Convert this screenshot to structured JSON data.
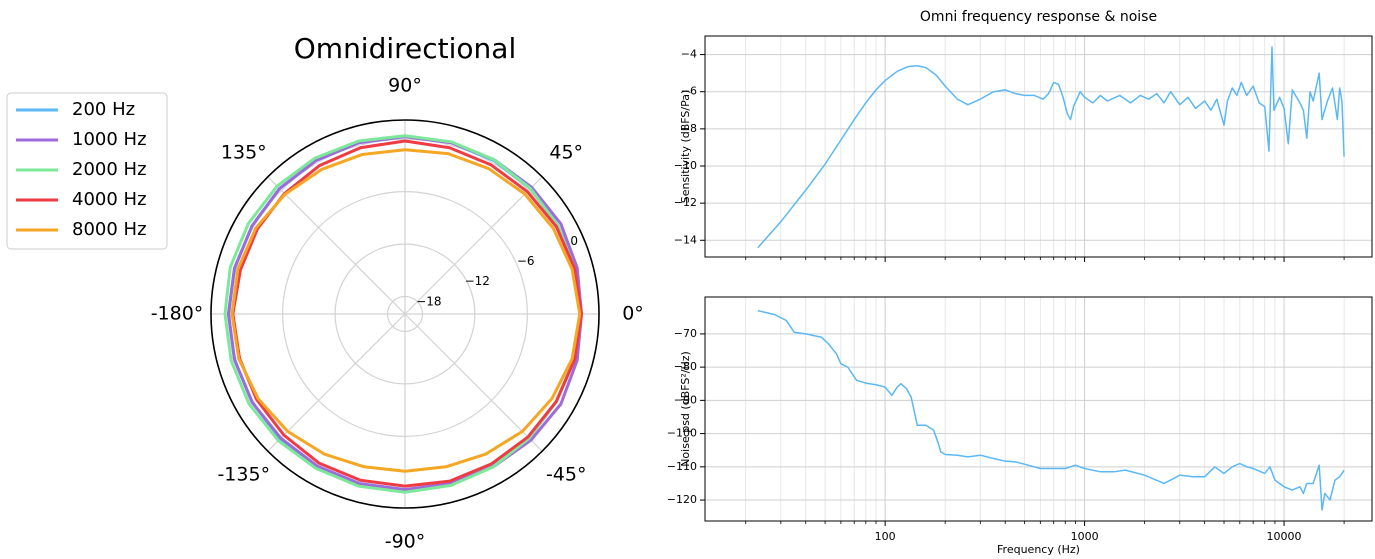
{
  "chart_data": [
    {
      "type": "polar",
      "title": "Omnidirectional",
      "theta": [
        0,
        15,
        30,
        45,
        60,
        75,
        90,
        105,
        120,
        135,
        150,
        165,
        180,
        195,
        210,
        225,
        240,
        255,
        270,
        285,
        300,
        315,
        330,
        345
      ],
      "series": [
        {
          "name": "200 Hz",
          "color": "#5bb8f5",
          "values": [
            0.1,
            0.2,
            0.2,
            0.3,
            0.3,
            0.3,
            0.3,
            0.3,
            0.3,
            0.3,
            0.2,
            0.2,
            0.2,
            0.2,
            0.2,
            0.2,
            0.1,
            0.1,
            0.1,
            0.1,
            0.1,
            0.1,
            0.0,
            0.0
          ]
        },
        {
          "name": "1000 Hz",
          "color": "#9e6bdc",
          "values": [
            0.2,
            0.4,
            0.6,
            0.5,
            0.4,
            0.3,
            0.3,
            0.3,
            0.3,
            0.3,
            0.2,
            0.2,
            0.2,
            0.2,
            0.2,
            0.1,
            0.1,
            0.1,
            0.1,
            0.1,
            0.2,
            0.4,
            0.6,
            0.4
          ]
        },
        {
          "name": "2000 Hz",
          "color": "#7ee89a",
          "values": [
            0.0,
            0.1,
            0.2,
            0.3,
            0.4,
            0.4,
            0.4,
            0.5,
            0.6,
            0.7,
            0.7,
            0.7,
            0.6,
            0.6,
            0.6,
            0.5,
            0.4,
            0.4,
            0.4,
            0.3,
            0.2,
            0.1,
            0.0,
            0.0
          ]
        },
        {
          "name": "4000 Hz",
          "color": "#ef3b44",
          "values": [
            0.2,
            0.1,
            0.0,
            -0.2,
            -0.3,
            -0.3,
            -0.2,
            -0.3,
            -0.4,
            -0.5,
            -0.5,
            -0.5,
            -0.3,
            -0.4,
            -0.4,
            -0.4,
            -0.3,
            -0.3,
            -0.3,
            -0.2,
            -0.2,
            -0.1,
            0.0,
            0.1
          ]
        },
        {
          "name": "8000 Hz",
          "color": "#f5a623",
          "values": [
            0.0,
            -0.2,
            -0.4,
            -0.6,
            -0.8,
            -1.0,
            -1.2,
            -1.1,
            -0.9,
            -0.6,
            -0.3,
            -0.2,
            -0.2,
            -0.3,
            -0.6,
            -1.0,
            -1.5,
            -1.9,
            -2.0,
            -1.9,
            -1.5,
            -1.0,
            -0.6,
            -0.2
          ]
        }
      ],
      "rlim": [
        -20,
        2.2
      ],
      "rticks": [
        {
          "value": -18,
          "label": "−18"
        },
        {
          "value": -12,
          "label": "−12"
        },
        {
          "value": -6,
          "label": "−6"
        },
        0
      ],
      "thetaticks": [
        {
          "value": 0,
          "label": "0°"
        },
        {
          "value": 45,
          "label": "45°"
        },
        {
          "value": 90,
          "label": "90°"
        },
        {
          "value": 135,
          "label": "135°"
        },
        {
          "value": -180,
          "label": "-180°"
        },
        {
          "value": -135,
          "label": "-135°"
        },
        {
          "value": -90,
          "label": "-90°"
        },
        {
          "value": -45,
          "label": "-45°"
        }
      ],
      "grid": true,
      "legend": "left"
    },
    {
      "type": "line",
      "title": "Omni frequency response & noise",
      "ylabel": "Sensitivity (dBFS/Pa)",
      "xscale": "log",
      "x": [
        23,
        30,
        40,
        50,
        60,
        70,
        80,
        90,
        100,
        115,
        130,
        145,
        160,
        180,
        200,
        230,
        260,
        300,
        350,
        400,
        450,
        500,
        560,
        620,
        660,
        700,
        740,
        780,
        820,
        850,
        880,
        950,
        1000,
        1100,
        1200,
        1300,
        1500,
        1700,
        1900,
        2100,
        2300,
        2500,
        2700,
        3000,
        3300,
        3600,
        4000,
        4300,
        4600,
        5000,
        5200,
        5500,
        5800,
        6100,
        6500,
        7000,
        7500,
        8000,
        8400,
        8700,
        8900,
        9500,
        10000,
        10500,
        11000,
        12000,
        12500,
        13000,
        13500,
        14000,
        15000,
        15500,
        16500,
        17500,
        18500,
        19000,
        19500,
        20000
      ],
      "series": [
        {
          "color": "#5bb8f5",
          "values": [
            -14.4,
            -13.0,
            -11.3,
            -9.9,
            -8.6,
            -7.5,
            -6.6,
            -5.9,
            -5.4,
            -4.9,
            -4.65,
            -4.6,
            -4.7,
            -5.1,
            -5.7,
            -6.4,
            -6.7,
            -6.4,
            -6.0,
            -5.9,
            -6.1,
            -6.2,
            -6.2,
            -6.4,
            -6.1,
            -5.5,
            -5.6,
            -6.3,
            -7.2,
            -7.5,
            -6.8,
            -6.0,
            -6.3,
            -6.6,
            -6.2,
            -6.5,
            -6.2,
            -6.6,
            -6.2,
            -6.4,
            -6.1,
            -6.6,
            -6.0,
            -6.7,
            -6.3,
            -6.9,
            -6.5,
            -7.0,
            -6.4,
            -7.8,
            -6.5,
            -5.8,
            -6.2,
            -5.5,
            -6.2,
            -5.7,
            -6.6,
            -6.8,
            -9.2,
            -3.6,
            -7.0,
            -6.3,
            -6.9,
            -8.8,
            -5.9,
            -6.6,
            -7.0,
            -8.5,
            -6.0,
            -6.5,
            -5.0,
            -7.5,
            -6.5,
            -5.8,
            -7.5,
            -5.8,
            -6.5,
            -9.5
          ]
        }
      ],
      "xlim": [
        12.5,
        27600
      ],
      "xticks": [
        100,
        1000,
        10000
      ],
      "xminor": [
        20,
        30,
        40,
        50,
        60,
        70,
        80,
        90,
        200,
        300,
        400,
        500,
        600,
        700,
        800,
        900,
        2000,
        3000,
        4000,
        5000,
        6000,
        7000,
        8000,
        9000,
        20000
      ],
      "ylim": [
        -14.9,
        -3.0
      ],
      "yticks": [
        {
          "value": -14,
          "label": "−14"
        },
        {
          "value": -12,
          "label": "−12"
        },
        {
          "value": -10,
          "label": "−10"
        },
        {
          "value": -8,
          "label": "−8"
        },
        {
          "value": -6,
          "label": "−6"
        },
        {
          "value": -4,
          "label": "−4"
        }
      ],
      "grid": true
    },
    {
      "type": "line",
      "ylabel": "Noise psd (dBFS²/Hz)",
      "xlabel": "Frequency (Hz)",
      "xscale": "log",
      "x": [
        23,
        28,
        32,
        35,
        40,
        48,
        52,
        57,
        60,
        65,
        72,
        80,
        90,
        100,
        108,
        115,
        120,
        128,
        135,
        145,
        160,
        175,
        185,
        190,
        200,
        230,
        260,
        300,
        350,
        400,
        450,
        500,
        600,
        700,
        800,
        900,
        1000,
        1200,
        1400,
        1600,
        2000,
        2500,
        2800,
        3000,
        3500,
        4000,
        4500,
        5000,
        5500,
        6000,
        6500,
        7000,
        8000,
        8500,
        9000,
        10000,
        11000,
        12000,
        12500,
        13000,
        14000,
        15000,
        15500,
        16000,
        17000,
        18000,
        19000,
        20000
      ],
      "series": [
        {
          "color": "#5bb8f5",
          "values": [
            -63,
            -64.2,
            -66,
            -69.5,
            -70,
            -71,
            -73,
            -76,
            -79,
            -80,
            -84,
            -84.8,
            -85.3,
            -86,
            -88.5,
            -86,
            -85,
            -86.5,
            -89,
            -97.5,
            -97.5,
            -99,
            -103,
            -105.5,
            -106.3,
            -106.5,
            -107,
            -106.5,
            -107.5,
            -108.3,
            -108.5,
            -109.2,
            -110.5,
            -110.5,
            -110.5,
            -109.5,
            -110.5,
            -111.5,
            -111.5,
            -111,
            -112.5,
            -115,
            -113.5,
            -112.5,
            -113,
            -113,
            -110,
            -112,
            -110,
            -109,
            -110,
            -110.5,
            -112,
            -110,
            -114,
            -116,
            -117,
            -116,
            -118,
            -115,
            -115,
            -109.5,
            -123,
            -118,
            -120,
            -114,
            -113,
            -111
          ]
        }
      ],
      "xlim": [
        12.5,
        27600
      ],
      "xticks": [
        100,
        1000,
        10000
      ],
      "xminor": [
        20,
        30,
        40,
        50,
        60,
        70,
        80,
        90,
        200,
        300,
        400,
        500,
        600,
        700,
        800,
        900,
        2000,
        3000,
        4000,
        5000,
        6000,
        7000,
        8000,
        9000,
        20000
      ],
      "ylim": [
        -126.3,
        -58.9
      ],
      "yticks": [
        {
          "value": -120,
          "label": "−120"
        },
        {
          "value": -110,
          "label": "−110"
        },
        {
          "value": -100,
          "label": "−100"
        },
        {
          "value": -90,
          "label": "−90"
        },
        {
          "value": -80,
          "label": "−80"
        },
        {
          "value": -70,
          "label": "−70"
        }
      ],
      "grid": true
    }
  ]
}
